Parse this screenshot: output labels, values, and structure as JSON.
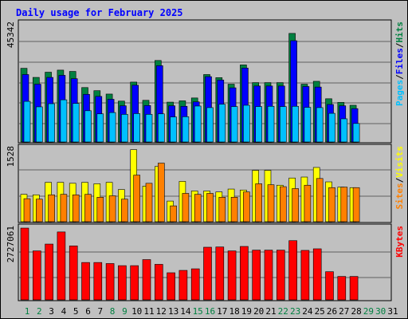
{
  "title": "Daily usage for February 2025",
  "colors": {
    "background": "#c0c0c0",
    "plot_background": "#c0c0c0",
    "hits": "#008040",
    "files": "#0000ff",
    "pages": "#00c0ff",
    "visits": "#ffff00",
    "sites": "#ff8000",
    "kbytes": "#ff0000",
    "weekday_label": "#008040",
    "future_day_label": "#008040",
    "day_label": "#000000"
  },
  "chart_data": [
    {
      "type": "bar",
      "id": "hits-files-pages",
      "ymax_label": "45342",
      "ylim": [
        0,
        45342
      ],
      "legend": [
        {
          "label": "Pages",
          "color": "#00c0ff"
        },
        {
          "label": "/",
          "color": "#000000"
        },
        {
          "label": "Files",
          "color": "#0000ff"
        },
        {
          "label": "/",
          "color": "#000000"
        },
        {
          "label": "Hits",
          "color": "#008040"
        }
      ],
      "categories": [
        "1",
        "2",
        "3",
        "4",
        "5",
        "6",
        "7",
        "8",
        "9",
        "10",
        "11",
        "12",
        "13",
        "14",
        "15",
        "16",
        "17",
        "18",
        "19",
        "20",
        "21",
        "22",
        "23",
        "24",
        "25",
        "26",
        "27",
        "28",
        "29",
        "30",
        "31"
      ],
      "series": [
        {
          "name": "Hits",
          "color": "#008040",
          "values": [
            28300,
            24800,
            26800,
            27600,
            27100,
            20900,
            19700,
            18400,
            15700,
            23000,
            16000,
            31300,
            15300,
            15800,
            16900,
            25900,
            24700,
            22200,
            29600,
            22800,
            22800,
            22800,
            41700,
            22200,
            23300,
            16600,
            15200,
            14100,
            0,
            0,
            0
          ]
        },
        {
          "name": "Files",
          "color": "#0000ff",
          "values": [
            25900,
            22200,
            24800,
            25600,
            24300,
            18300,
            17500,
            16400,
            13900,
            21800,
            14000,
            29300,
            13900,
            13700,
            15400,
            25100,
            23800,
            20800,
            28400,
            21500,
            21500,
            21500,
            38900,
            21300,
            21100,
            14400,
            13900,
            12800,
            0,
            0,
            0
          ]
        },
        {
          "name": "Pages",
          "color": "#00c0ff",
          "values": [
            15600,
            13500,
            14700,
            16200,
            14800,
            12000,
            10800,
            11300,
            10600,
            10900,
            10600,
            10800,
            9600,
            9700,
            13800,
            13200,
            14500,
            13600,
            14100,
            13600,
            13700,
            13600,
            13700,
            13300,
            13200,
            11000,
            8900,
            7100,
            0,
            0,
            0
          ]
        }
      ]
    },
    {
      "type": "bar",
      "id": "visits-sites",
      "ymax_label": "1528",
      "ylim": [
        0,
        1528
      ],
      "legend": [
        {
          "label": "Sites",
          "color": "#ff8000"
        },
        {
          "label": "/",
          "color": "#000000"
        },
        {
          "label": "Visits",
          "color": "#ffff00"
        }
      ],
      "categories": [
        "1",
        "2",
        "3",
        "4",
        "5",
        "6",
        "7",
        "8",
        "9",
        "10",
        "11",
        "12",
        "13",
        "14",
        "15",
        "16",
        "17",
        "18",
        "19",
        "20",
        "21",
        "22",
        "23",
        "24",
        "25",
        "26",
        "27",
        "28",
        "29",
        "30",
        "31"
      ],
      "series": [
        {
          "name": "Visits",
          "color": "#ffff00",
          "values": [
            570,
            560,
            820,
            820,
            800,
            820,
            790,
            820,
            670,
            1500,
            740,
            1150,
            430,
            840,
            640,
            640,
            620,
            680,
            660,
            1070,
            1070,
            760,
            910,
            930,
            1130,
            830,
            720,
            710,
            0,
            0,
            0
          ]
        },
        {
          "name": "Sites",
          "color": "#ff8000",
          "values": [
            480,
            470,
            560,
            570,
            560,
            570,
            510,
            540,
            470,
            970,
            800,
            1220,
            330,
            590,
            570,
            590,
            510,
            510,
            620,
            790,
            770,
            730,
            690,
            760,
            900,
            710,
            720,
            710,
            0,
            0,
            0
          ]
        }
      ]
    },
    {
      "type": "bar",
      "id": "kbytes",
      "ymax_label": "2727061",
      "ylim": [
        0,
        2727061
      ],
      "legend": [
        {
          "label": "KBytes",
          "color": "#ff0000"
        }
      ],
      "categories": [
        "1",
        "2",
        "3",
        "4",
        "5",
        "6",
        "7",
        "8",
        "9",
        "10",
        "11",
        "12",
        "13",
        "14",
        "15",
        "16",
        "17",
        "18",
        "19",
        "20",
        "21",
        "22",
        "23",
        "24",
        "25",
        "26",
        "27",
        "28",
        "29",
        "30",
        "31"
      ],
      "series": [
        {
          "name": "KBytes",
          "color": "#ff0000",
          "values": [
            2727061,
            1860000,
            2120000,
            2580000,
            2050000,
            1420000,
            1420000,
            1380000,
            1300000,
            1300000,
            1530000,
            1350000,
            1030000,
            1120000,
            1180000,
            2000000,
            2010000,
            1860000,
            2030000,
            1890000,
            1890000,
            1890000,
            2250000,
            1880000,
            1940000,
            1070000,
            890000,
            890000,
            0,
            0,
            0
          ]
        }
      ]
    }
  ],
  "x_axis": {
    "labels": [
      "1",
      "2",
      "3",
      "4",
      "5",
      "6",
      "7",
      "8",
      "9",
      "10",
      "11",
      "12",
      "13",
      "14",
      "15",
      "16",
      "17",
      "18",
      "19",
      "20",
      "21",
      "22",
      "23",
      "24",
      "25",
      "26",
      "27",
      "28",
      "29",
      "30",
      "31"
    ],
    "weekend_days": [
      1,
      2,
      8,
      9,
      15,
      16,
      22,
      23,
      29,
      30
    ],
    "no_data_days": [
      29,
      30,
      31
    ]
  }
}
